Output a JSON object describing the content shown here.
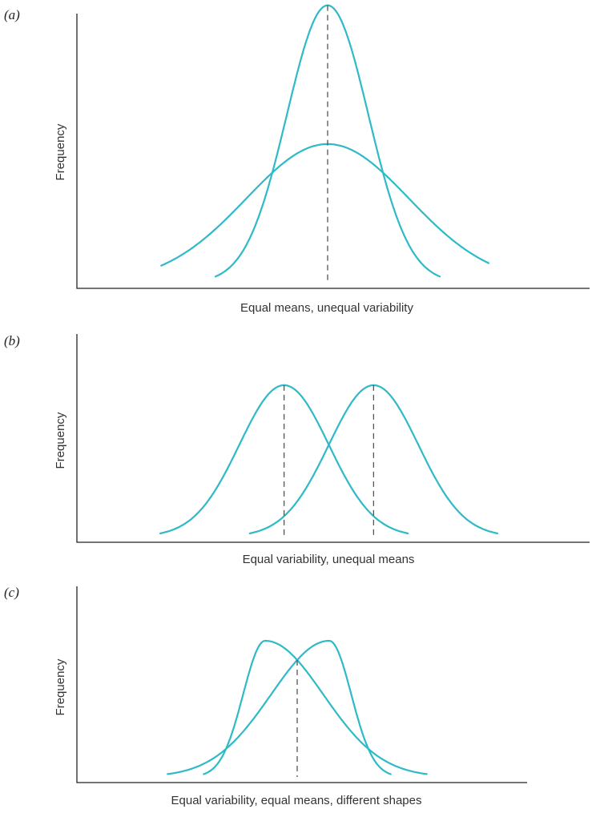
{
  "style": {
    "curve_color": "#2ebac6",
    "axis_color": "#222222",
    "mean_line_color": "#555555"
  },
  "chart_data": [
    {
      "type": "line",
      "panel_label": "(a)",
      "xlabel": "Equal means, unequal variability",
      "ylabel": "Frequency",
      "grid": false,
      "xlim": [
        -4,
        4
      ],
      "ylim": [
        0,
        1.1
      ],
      "series": [
        {
          "shape": "normal",
          "mean": 0,
          "sd": 0.75,
          "peak": 1.0
        },
        {
          "shape": "normal",
          "mean": 0,
          "sd": 1.5,
          "peak": 0.5
        }
      ],
      "mean_lines": [
        0
      ]
    },
    {
      "type": "line",
      "panel_label": "(b)",
      "xlabel": "Equal variability, unequal means",
      "ylabel": "Frequency",
      "grid": false,
      "xlim": [
        -4,
        4
      ],
      "ylim": [
        0,
        1.1
      ],
      "series": [
        {
          "shape": "normal",
          "mean": -1,
          "sd": 1.0,
          "peak": 1.0
        },
        {
          "shape": "normal",
          "mean": 1,
          "sd": 1.0,
          "peak": 1.0
        }
      ],
      "mean_lines": [
        -1,
        1
      ]
    },
    {
      "type": "line",
      "panel_label": "(c)",
      "xlabel": "Equal variability, equal means, different shapes",
      "ylabel": "Frequency",
      "grid": false,
      "xlim": [
        -4,
        4
      ],
      "ylim": [
        0,
        1.1
      ],
      "series": [
        {
          "shape": "skew-right",
          "mode": -0.8,
          "peak": 1.0
        },
        {
          "shape": "skew-left",
          "mode": 0.8,
          "peak": 1.0
        }
      ],
      "mean_lines": [
        0
      ]
    }
  ]
}
